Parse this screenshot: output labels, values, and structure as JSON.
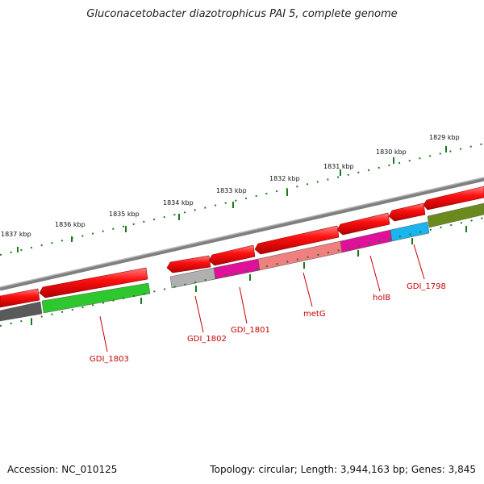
{
  "title": "Gluconacetobacter diazotrophicus PAI 5, complete genome",
  "footer": {
    "accession": "Accession: NC_010125",
    "topology": "Topology: circular; Length: 3,944,163 bp; Genes: 3,845"
  },
  "scale_labels": [
    "1829 kbp",
    "1830 kbp",
    "1831 kbp",
    "1832 kbp",
    "1833 kbp",
    "1834 kbp",
    "1835 kbp",
    "1836 kbp",
    "1837 kbp"
  ],
  "gene_labels": [
    "GDI_1798",
    "holB",
    "metG",
    "GDI_1801",
    "GDI_1802",
    "GDI_1803"
  ],
  "colors": {
    "forward": "#e80000",
    "backbone": "#808080",
    "scale_tick": "#1a7a1a",
    "label": "#c80000",
    "GDI_1798": "#1ab4ee",
    "holB": "#e0109a",
    "metG": "#f07f7f",
    "GDI_1801": "#e0109a",
    "GDI_1802": "#b0b0b0",
    "GDI_1803": "#2ec82e",
    "gray_gene": "#5a5a5a",
    "olive_gene": "#6b8a1e"
  }
}
